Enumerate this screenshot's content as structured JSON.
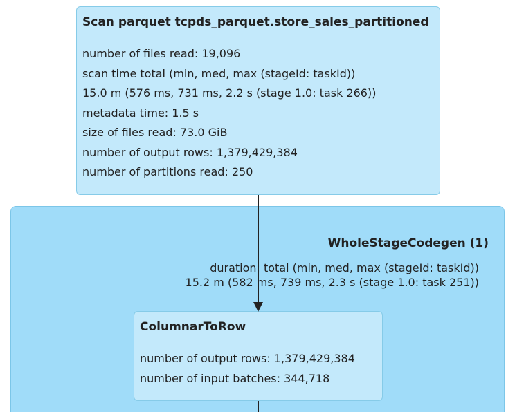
{
  "colors": {
    "node_fill": "#c3e9fb",
    "node_border": "#86cbe8",
    "cluster_fill": "#a0dcf9",
    "edge": "#222222"
  },
  "scan_node": {
    "title": "Scan parquet tcpds_parquet.store_sales_partitioned",
    "metrics": [
      "number of files read: 19,096",
      "scan time total (min, med, max (stageId: taskId))",
      "15.0 m (576 ms, 731 ms, 2.2 s (stage 1.0: task 266))",
      "metadata time: 1.5 s",
      "size of files read: 73.0 GiB",
      "number of output rows: 1,379,429,384",
      "number of partitions read: 250"
    ]
  },
  "codegen_cluster": {
    "title": "WholeStageCodegen (1)",
    "metrics": [
      "duration: total (min, med, max (stageId: taskId))",
      "15.2 m (582 ms, 739 ms, 2.3 s (stage 1.0: task 251))"
    ]
  },
  "columnar_node": {
    "title": "ColumnarToRow",
    "metrics": [
      "number of output rows: 1,379,429,384",
      "number of input batches: 344,718"
    ]
  }
}
